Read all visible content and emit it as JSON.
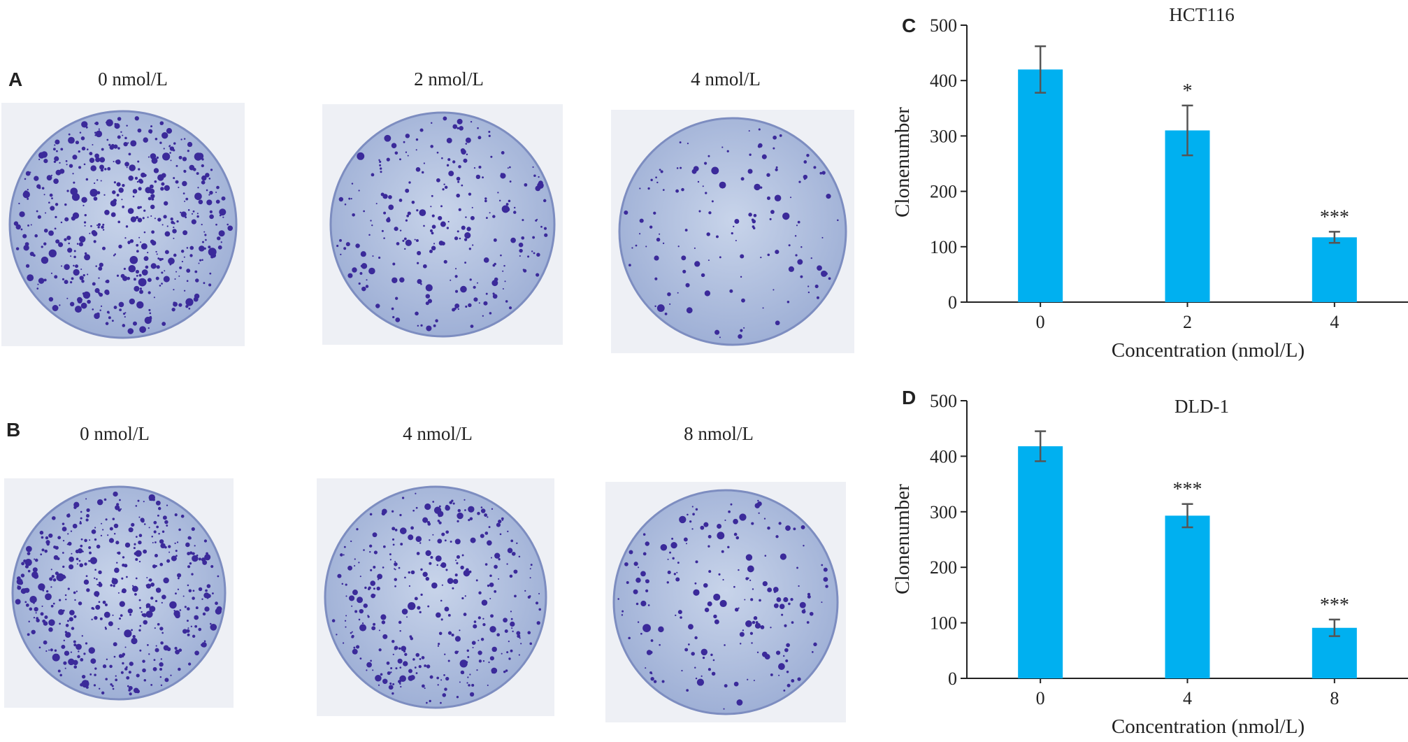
{
  "photo_panels": [
    {
      "letter": "A",
      "labels": [
        "0 nmol/L",
        "2 nmol/L",
        "4 nmol/L"
      ]
    },
    {
      "letter": "B",
      "labels": [
        "0 nmol/L",
        "4 nmol/L",
        "8 nmol/L"
      ]
    }
  ],
  "chart_data": [
    {
      "type": "bar",
      "letter": "C",
      "title": "HCT116",
      "categories": [
        "0",
        "2",
        "4"
      ],
      "values": [
        420,
        310,
        117
      ],
      "errors": [
        42,
        45,
        10
      ],
      "significance": [
        null,
        "*",
        "***"
      ],
      "color": "#00b0f0",
      "ylim": [
        0,
        500
      ],
      "yticks": [
        0,
        100,
        200,
        300,
        400,
        500
      ],
      "ylabel": "Clonenumber",
      "xlabel": "Concentration (nmol/L)"
    },
    {
      "type": "bar",
      "letter": "D",
      "title": "DLD-1",
      "categories": [
        "0",
        "4",
        "8"
      ],
      "values": [
        418,
        293,
        91
      ],
      "errors": [
        27,
        21,
        15
      ],
      "significance": [
        null,
        "***",
        "***"
      ],
      "color": "#00b0f0",
      "ylim": [
        0,
        500
      ],
      "yticks": [
        0,
        100,
        200,
        300,
        400,
        500
      ],
      "ylabel": "Clonenumber",
      "xlabel": "Concentration (nmol/L)"
    }
  ]
}
